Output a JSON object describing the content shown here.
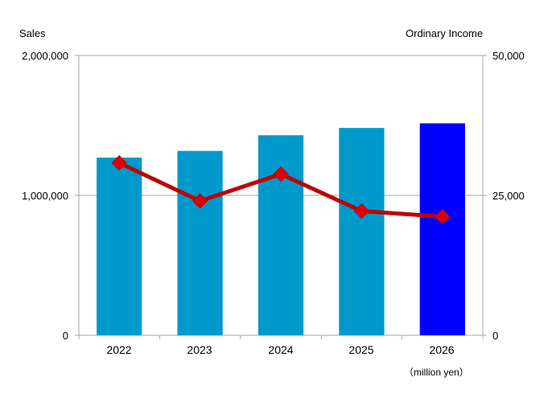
{
  "chart_data": {
    "type": "bar",
    "categories": [
      "2022",
      "2023",
      "2024",
      "2025",
      "2026"
    ],
    "series": [
      {
        "name": "Sales",
        "type": "bar",
        "axis": "left",
        "values": [
          1270000,
          1318000,
          1430000,
          1482000,
          1515000
        ],
        "colors": [
          "#0099CC",
          "#0099CC",
          "#0099CC",
          "#0099CC",
          "#0000FF"
        ]
      },
      {
        "name": "Ordinary Income",
        "type": "line",
        "axis": "right",
        "values": [
          30800,
          24000,
          28800,
          22200,
          21200
        ],
        "color": "#C00000"
      }
    ],
    "left_axis": {
      "label": "Sales",
      "ylim": [
        0,
        2000000
      ],
      "ticks": [
        0,
        1000000,
        2000000
      ],
      "tick_labels": [
        "0",
        "1,000,000",
        "2,000,000"
      ]
    },
    "right_axis": {
      "label": "Ordinary Income",
      "ylim": [
        0,
        50000
      ],
      "ticks": [
        0,
        25000,
        50000
      ],
      "tick_labels": [
        "0",
        "25,000",
        "50,000"
      ]
    },
    "unit_note": "（million yen）",
    "grid": true,
    "legend": "none"
  }
}
